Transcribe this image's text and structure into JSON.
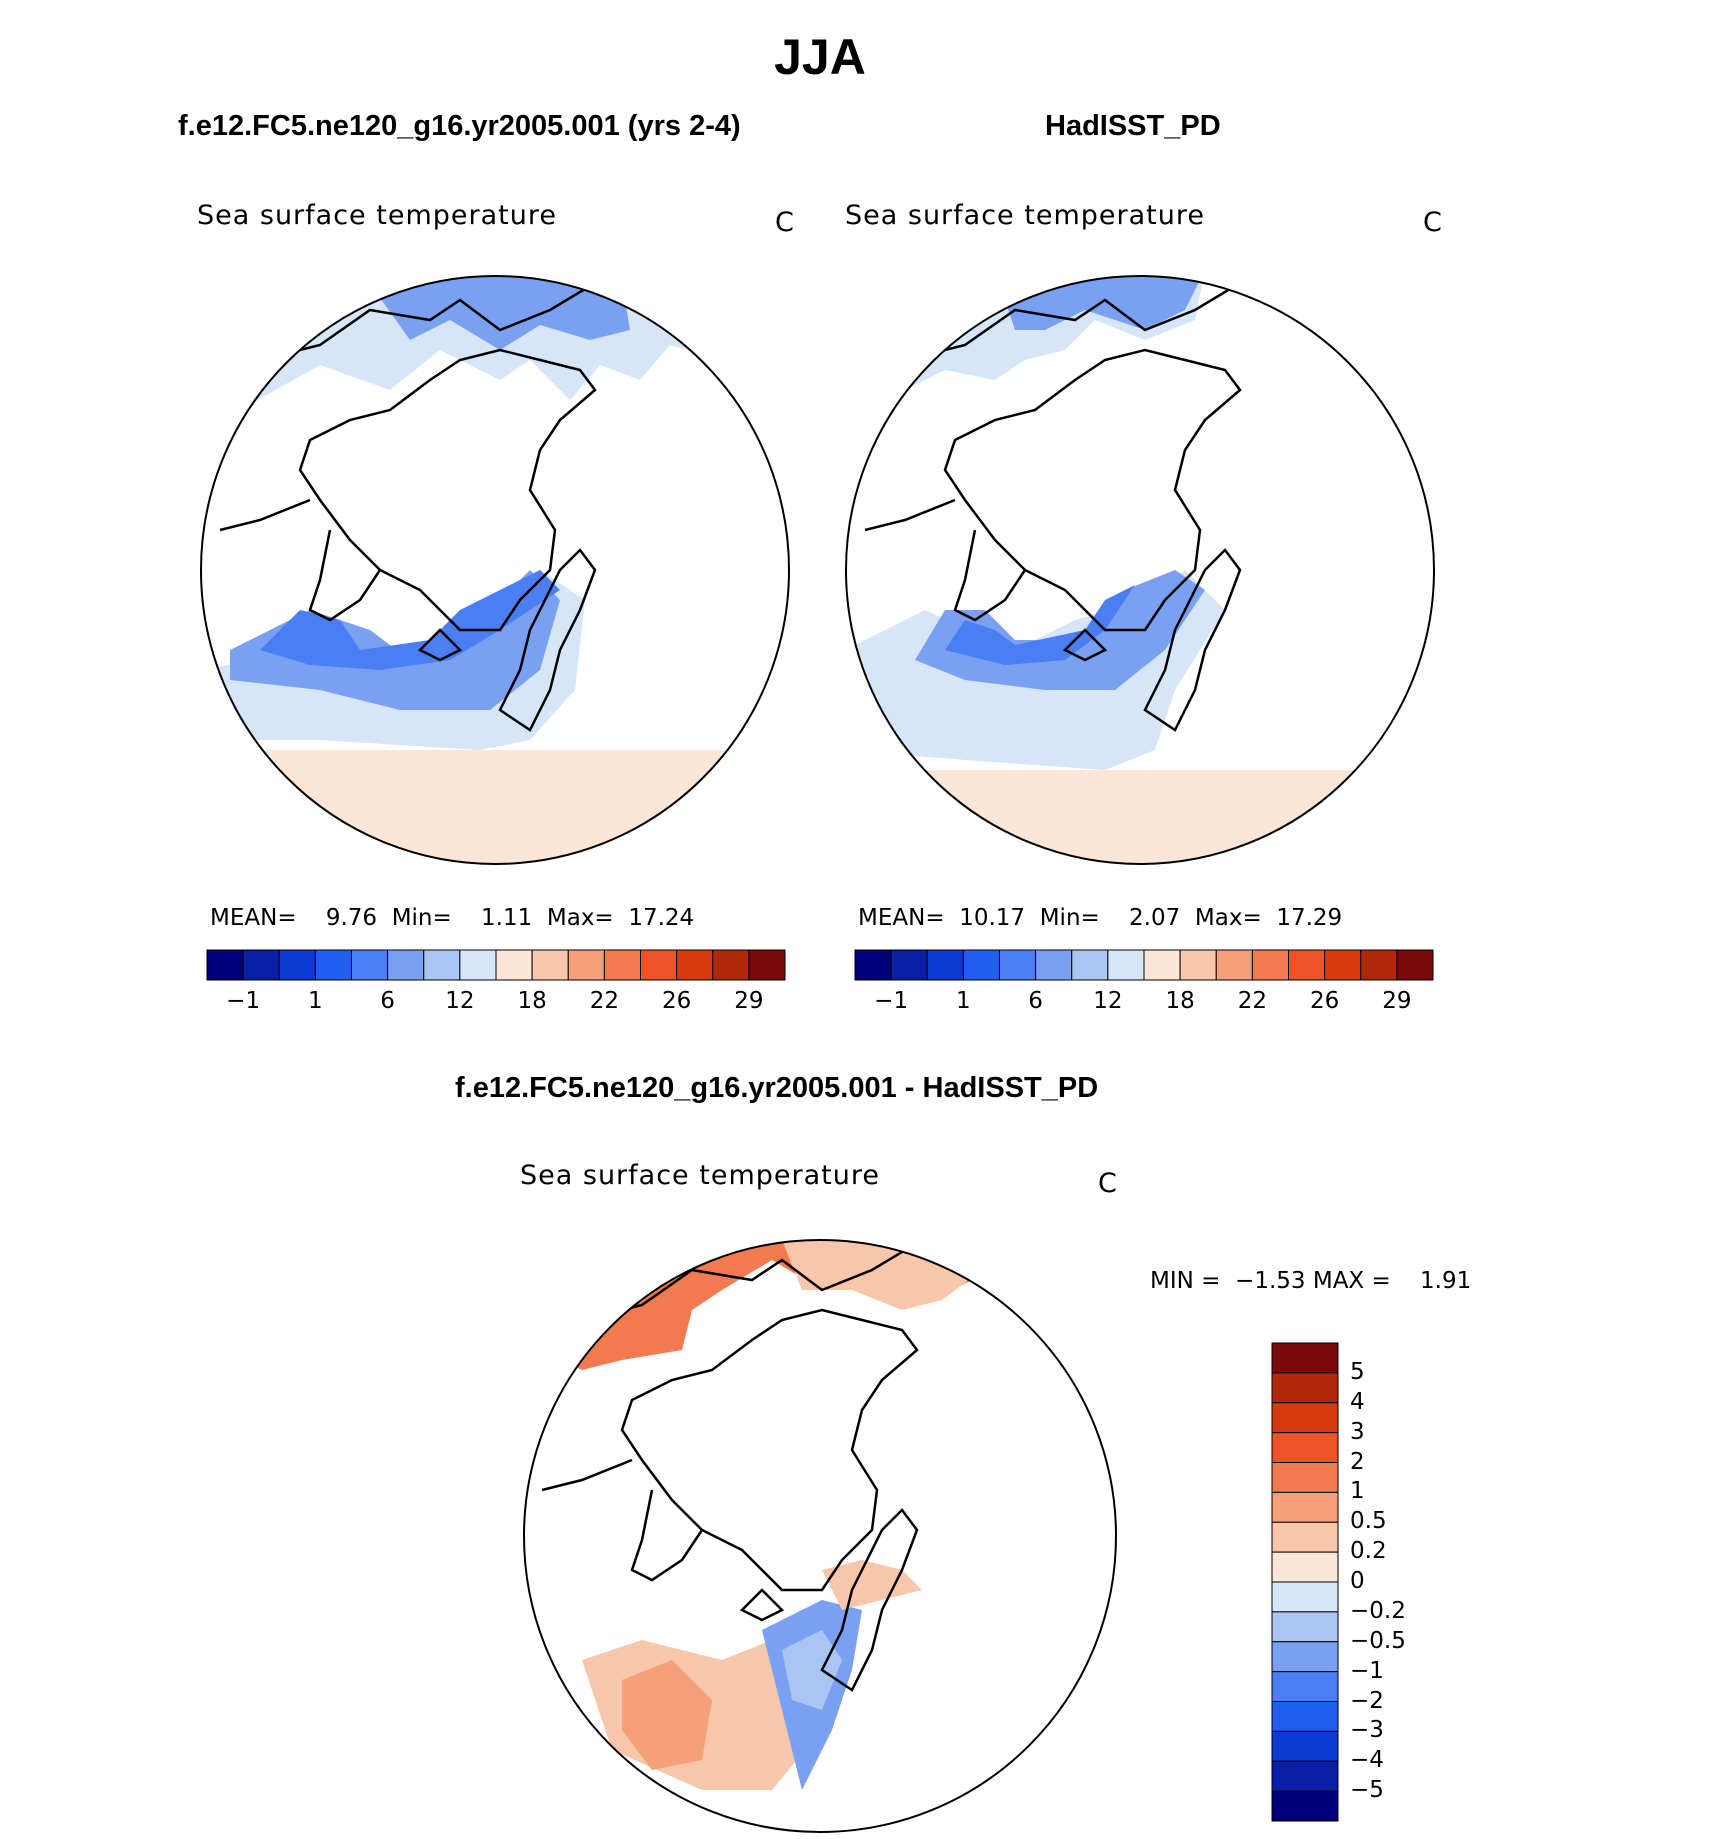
{
  "main_title": "JJA",
  "panels": [
    {
      "title": "f.e12.FC5.ne120_g16.yr2005.001 (yrs 2-4)",
      "variable": "Sea surface temperature",
      "units": "C",
      "stats": {
        "mean_label": "MEAN=",
        "mean": "9.76",
        "min_label": "Min=",
        "min": "1.11",
        "max_label": "Max=",
        "max": "17.24"
      }
    },
    {
      "title": "HadISST_PD",
      "variable": "Sea surface temperature",
      "units": "C",
      "stats": {
        "mean_label": "MEAN=",
        "mean": "10.17",
        "min_label": "Min=",
        "min": "2.07",
        "max_label": "Max=",
        "max": "17.29"
      }
    },
    {
      "title": "f.e12.FC5.ne120_g16.yr2005.001 - HadISST_PD",
      "variable": "Sea surface temperature",
      "units": "C",
      "stats": {
        "min_label": "MIN =",
        "min": "−1.53",
        "max_label": "MAX =",
        "max": "1.91"
      }
    }
  ],
  "colors": {
    "sst_palette": [
      "#00007a",
      "#0a1fa8",
      "#0b3ad4",
      "#1f5ef0",
      "#4a7ef2",
      "#7aa0f2",
      "#aac4f4",
      "#d6e6f8",
      "#fbe6d8",
      "#f8c6aa",
      "#f5a07a",
      "#f27a4e",
      "#ee5228",
      "#d83a10",
      "#b02808",
      "#7a0a0a"
    ],
    "diff_palette": [
      "#00007a",
      "#0a1fa8",
      "#0b3ad4",
      "#1f5ef0",
      "#4a7ef2",
      "#7aa0f2",
      "#aac4f4",
      "#d6e6f8",
      "#fbe6d8",
      "#f8c6aa",
      "#f5a07a",
      "#f27a4e",
      "#ee5228",
      "#d83a10",
      "#b02808",
      "#7a0a0a"
    ],
    "land_outline": "#000000",
    "map_background": "#ffffff"
  },
  "chart_data": [
    {
      "type": "heatmap",
      "title": "f.e12.FC5.ne120_g16.yr2005.001 (yrs 2-4)",
      "subtitle": "Sea surface temperature",
      "units": "C",
      "projection": "north polar stereographic",
      "colorbar_ticks": [
        "−1",
        "1",
        "6",
        "12",
        "18",
        "22",
        "26",
        "29"
      ],
      "mean": 9.76,
      "min": 1.11,
      "max": 17.24
    },
    {
      "type": "heatmap",
      "title": "HadISST_PD",
      "subtitle": "Sea surface temperature",
      "units": "C",
      "projection": "north polar stereographic",
      "colorbar_ticks": [
        "−1",
        "1",
        "6",
        "12",
        "18",
        "22",
        "26",
        "29"
      ],
      "mean": 10.17,
      "min": 2.07,
      "max": 17.29
    },
    {
      "type": "heatmap",
      "title": "f.e12.FC5.ne120_g16.yr2005.001 - HadISST_PD",
      "subtitle": "Sea surface temperature",
      "units": "C",
      "projection": "north polar stereographic",
      "colorbar_ticks": [
        "5",
        "4",
        "3",
        "2",
        "1",
        "0.5",
        "0.2",
        "0",
        "−0.2",
        "−0.5",
        "−1",
        "−2",
        "−3",
        "−4",
        "−5"
      ],
      "min": -1.53,
      "max": 1.91
    }
  ]
}
